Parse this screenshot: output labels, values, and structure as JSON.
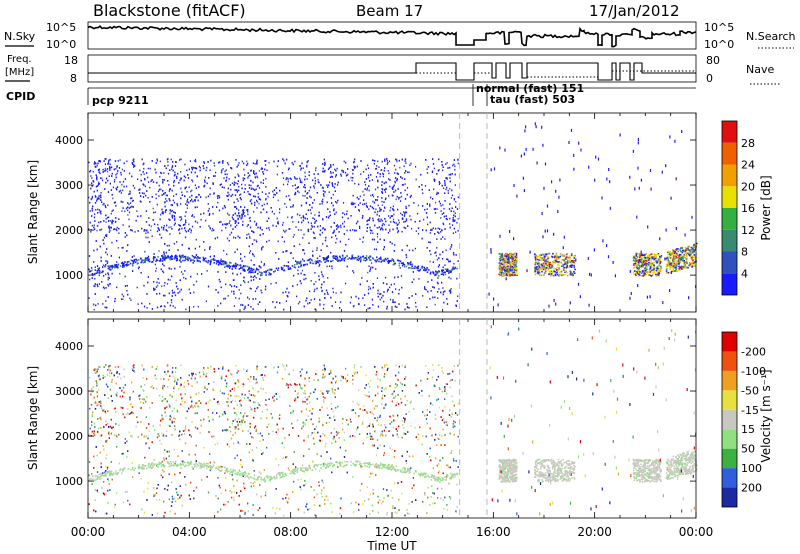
{
  "header": {
    "station": "Blackstone (fitACF)",
    "beam": "Beam 17",
    "date": "17/Jan/2012"
  },
  "top_panels": {
    "nsky_label": "N.Sky",
    "nsearch_label": "N.Search",
    "noise_ticks_left": [
      "10^5",
      "10^0"
    ],
    "noise_ticks_right": [
      "10^5",
      "10^0"
    ],
    "freq_label_1": "Freq.",
    "freq_label_2": "[MHz]",
    "freq_ticks_left": [
      "18",
      "8"
    ],
    "nave_label": "Nave",
    "nave_ticks_right": [
      "80",
      "0"
    ],
    "cpid_label": "CPID",
    "cpid_entries": [
      "pcp 9211",
      "normal (fast) 151",
      "tau (fast) 503"
    ]
  },
  "chart_data": [
    {
      "type": "heatmap",
      "name": "power-panel",
      "ylabel": "Slant Range [km]",
      "ylim": [
        180,
        4600
      ],
      "yticks": [
        1000,
        2000,
        3000,
        4000
      ],
      "xlim_hours": [
        0,
        24
      ],
      "colorbar": {
        "label": "Power [dB]",
        "ticks": [
          "4",
          "8",
          "12",
          "16",
          "20",
          "24",
          "28"
        ],
        "colors": [
          "#1a1aff",
          "#3050c0",
          "#3a8a70",
          "#34b040",
          "#e8e000",
          "#f0a000",
          "#f06000",
          "#e01010"
        ]
      }
    },
    {
      "type": "heatmap",
      "name": "velocity-panel",
      "ylabel": "Slant Range [km]",
      "ylim": [
        180,
        4600
      ],
      "yticks": [
        1000,
        2000,
        3000,
        4000
      ],
      "xlabel": "Time UT",
      "xticks": [
        "00:00",
        "04:00",
        "08:00",
        "12:00",
        "16:00",
        "20:00",
        "00:00"
      ],
      "xlim_hours": [
        0,
        24
      ],
      "colorbar": {
        "label": "Velocity [m s⁻¹]",
        "ticks": [
          "200",
          "100",
          "50",
          "15",
          "-15",
          "-50",
          "-100",
          "-200"
        ],
        "colors": [
          "#1a2aa0",
          "#2f5fdc",
          "#3cb040",
          "#90e080",
          "#c8c8c0",
          "#e8e040",
          "#f0a020",
          "#f05010",
          "#e00000"
        ]
      }
    }
  ]
}
